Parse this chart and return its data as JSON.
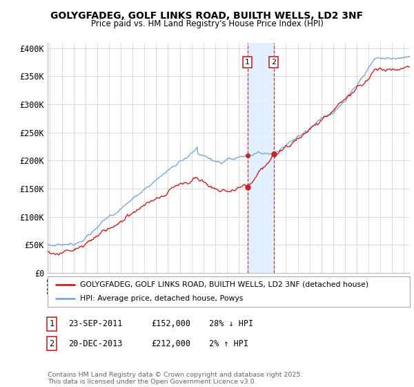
{
  "title": "GOLYGFADEG, GOLF LINKS ROAD, BUILTH WELLS, LD2 3NF",
  "subtitle": "Price paid vs. HM Land Registry's House Price Index (HPI)",
  "ylabel_ticks": [
    "£0",
    "£50K",
    "£100K",
    "£150K",
    "£200K",
    "£250K",
    "£300K",
    "£350K",
    "£400K"
  ],
  "ytick_vals": [
    0,
    50000,
    100000,
    150000,
    200000,
    250000,
    300000,
    350000,
    400000
  ],
  "ylim": [
    0,
    410000
  ],
  "xlim_start": 1994.8,
  "xlim_end": 2025.5,
  "hpi_color": "#7aa8d8",
  "price_color": "#cc2222",
  "marker1_x": 2011.73,
  "marker2_x": 2013.97,
  "legend_label1": "GOLYGFADEG, GOLF LINKS ROAD, BUILTH WELLS, LD2 3NF (detached house)",
  "legend_label2": "HPI: Average price, detached house, Powys",
  "table_row1": [
    "1",
    "23-SEP-2011",
    "£152,000",
    "28% ↓ HPI"
  ],
  "table_row2": [
    "2",
    "20-DEC-2013",
    "£212,000",
    "2% ↑ HPI"
  ],
  "footnote": "Contains HM Land Registry data © Crown copyright and database right 2025.\nThis data is licensed under the Open Government Licence v3.0.",
  "bg_color": "#ffffff",
  "grid_color": "#cccccc",
  "highlight_color": "#ddeeff"
}
